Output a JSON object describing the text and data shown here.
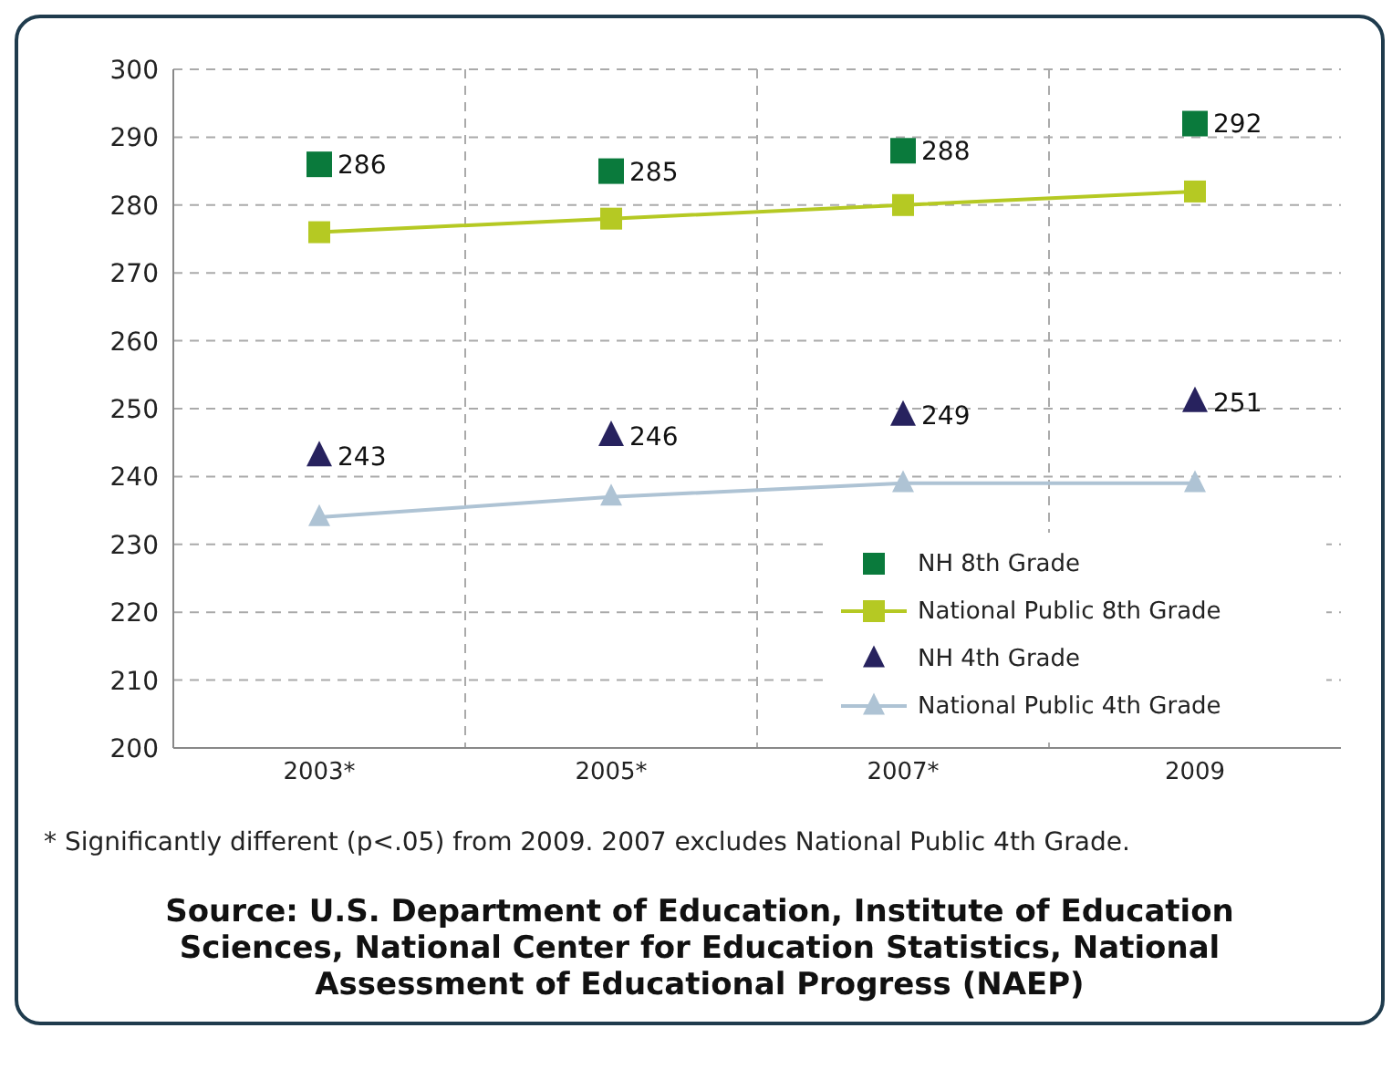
{
  "chart_data": {
    "type": "line",
    "categories": [
      "2003*",
      "2005*",
      "2007*",
      "2009"
    ],
    "series": [
      {
        "name": "NH 8th Grade",
        "type": "scatter",
        "marker": "square",
        "color": "#0a7a3c",
        "values": [
          286,
          285,
          288,
          292
        ],
        "value_labels": [
          "286",
          "285",
          "288",
          "292"
        ]
      },
      {
        "name": "National Public 8th Grade",
        "type": "line",
        "marker": "square",
        "color": "#b5c923",
        "values": [
          276,
          278,
          280,
          282
        ]
      },
      {
        "name": "NH 4th Grade",
        "type": "scatter",
        "marker": "triangle",
        "color": "#27225e",
        "values": [
          243,
          246,
          249,
          251
        ],
        "value_labels": [
          "243",
          "246",
          "249",
          "251"
        ]
      },
      {
        "name": "National Public 4th Grade",
        "type": "line",
        "marker": "triangle",
        "color": "#aec3d4",
        "values": [
          234,
          237,
          239,
          239
        ]
      }
    ],
    "ylim": [
      200,
      300
    ],
    "yticks": [
      200,
      210,
      220,
      230,
      240,
      250,
      260,
      270,
      280,
      290,
      300
    ],
    "grid": true,
    "legend": "bottom right",
    "annotations": [
      "* Significantly different (p<.05) from 2009. 2007 excludes National Public 4th Grade.",
      "Source: U.S. Department of Education, Institute of Education Sciences, National Center for Education Statistics, National Assessment of Educational Progress (NAEP)"
    ]
  }
}
